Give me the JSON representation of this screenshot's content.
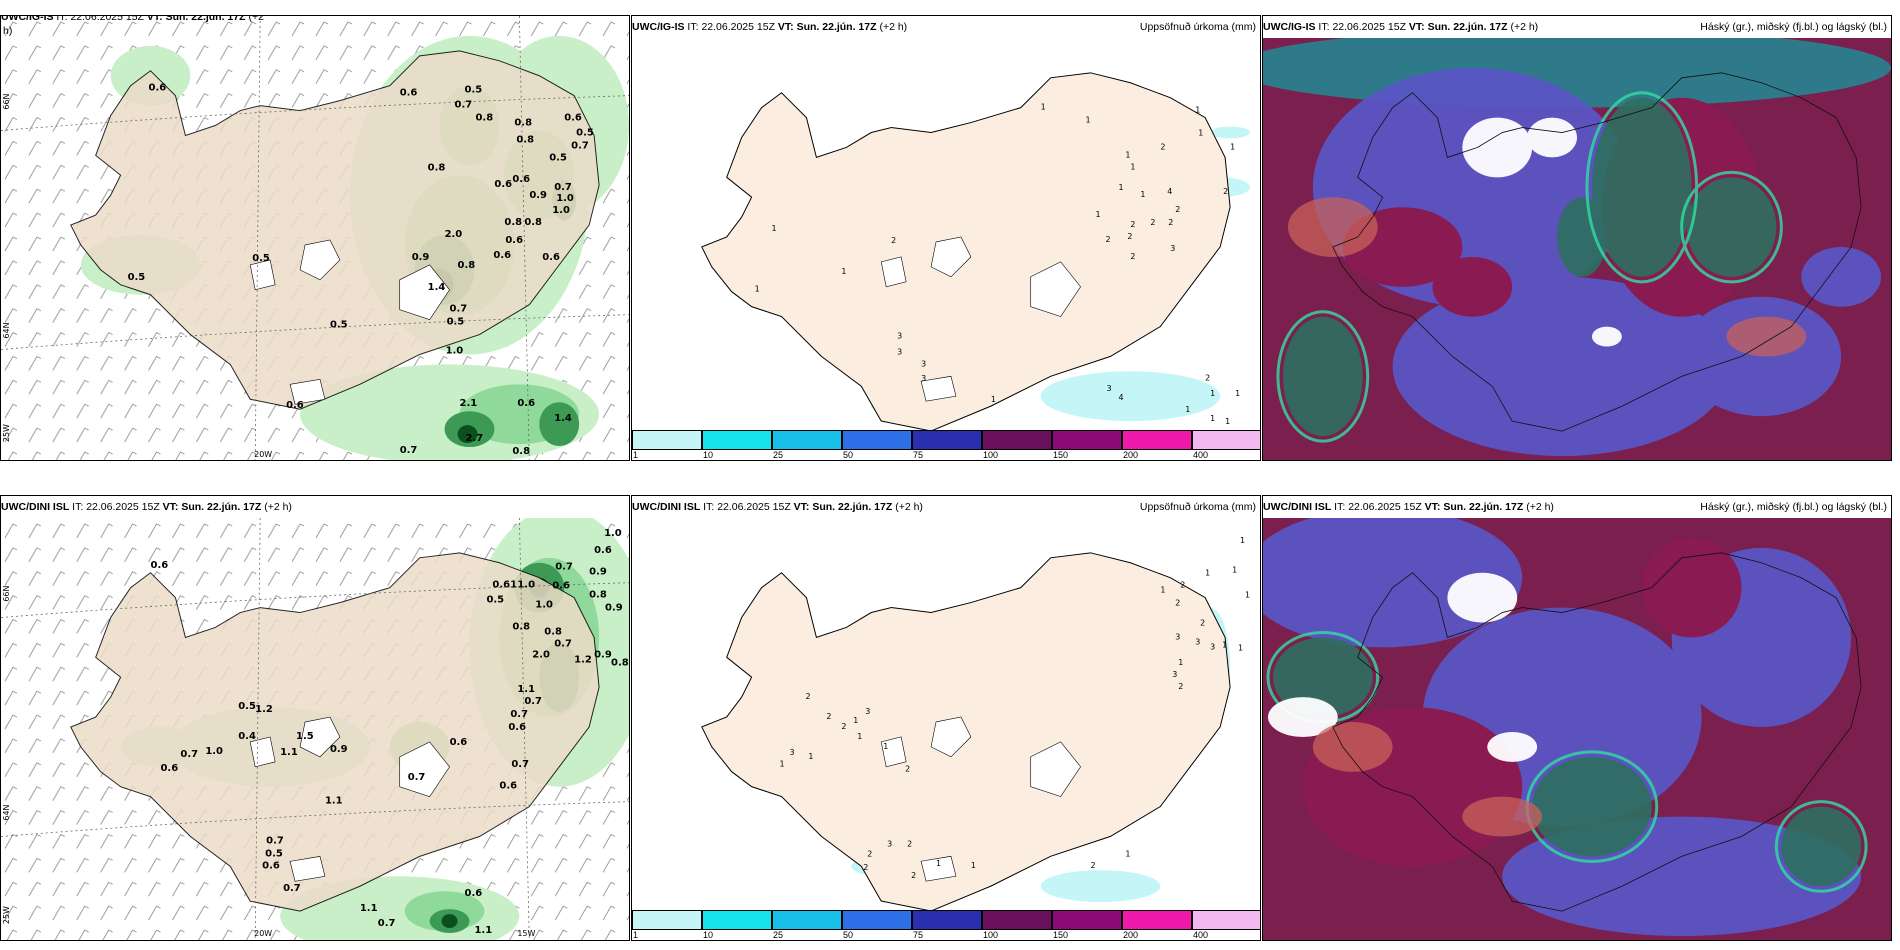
{
  "models": {
    "top": "UWC/IG-IS",
    "bottom": "UWC/DINI ISL"
  },
  "timing": {
    "it_label": "IT:",
    "it_value": "22.06.2025 15Z",
    "vt_label": "VT:",
    "vt_value": "Sun. 22.jún. 17Z",
    "lead": "(+2 h)",
    "lead_wrapped_a": "(+2",
    "lead_wrapped_b": "h)"
  },
  "titles": {
    "precip": "Uppsöfnuð úrkoma (mm)",
    "cloud": "Háský (gr.), miðský (fj.bl.) og lágský (bl.)"
  },
  "axes": {
    "lat66": "66N",
    "lat64": "64N",
    "lon25": "25W",
    "lon20": "20W",
    "lon15": "15W",
    "lat66r": "66N",
    "lat64r": "64N"
  },
  "colorbar": {
    "ticks": [
      "1",
      "10",
      "25",
      "50",
      "75",
      "100",
      "150",
      "200",
      "400"
    ],
    "colors": [
      "#c4f5f7",
      "#17e3eb",
      "#19bfe8",
      "#2f6fe8",
      "#2a2fb0",
      "#6a0f5c",
      "#8c0b77",
      "#f01aaa",
      "#f2b8f0"
    ]
  },
  "panel_top_left": {
    "labels": [
      "0.6",
      "0.6",
      "0.5",
      "0.7",
      "0.8",
      "0.8",
      "0.8",
      "0.6",
      "0.5",
      "0.7",
      "0.8",
      "0.5",
      "0.6",
      "0.6",
      "0.7",
      "1.0",
      "1.0",
      "0.9",
      "2.0",
      "0.8",
      "0.8",
      "1.4",
      "0.7",
      "0.9",
      "0.5",
      "0.6",
      "0.6",
      "0.8",
      "0.6",
      "0.5",
      "0.5",
      "0.5",
      "1.0",
      "2.1",
      "0.6",
      "2.7",
      "0.6",
      "0.8",
      "1.4",
      "0.7"
    ]
  },
  "panel_top_mid": {
    "labels": [
      "1",
      "1",
      "1",
      "1",
      "1",
      "2",
      "1",
      "1",
      "1",
      "4",
      "2",
      "1",
      "2",
      "2",
      "2",
      "2",
      "3",
      "2",
      "1",
      "2",
      "2",
      "1",
      "2",
      "1",
      "1",
      "3",
      "3",
      "3",
      "3",
      "3",
      "4",
      "1",
      "2",
      "1",
      "1",
      "1",
      "1",
      "1"
    ]
  },
  "panel_bot_left": {
    "labels": [
      "1.0",
      "0.6",
      "0.6",
      "0.7",
      "0.9",
      "0.61",
      "1.0",
      "0.5",
      "0.6",
      "0.8",
      "0.9",
      "0.8",
      "0.8",
      "1.0",
      "0.7",
      "2.0",
      "1.2",
      "0.9",
      "0.8",
      "1.1",
      "0.7",
      "0.7",
      "0.6",
      "1.2",
      "0.5",
      "0.4",
      "1.5",
      "0.9",
      "0.7",
      "1.0",
      "1.1",
      "0.6",
      "0.6",
      "0.7",
      "1.1",
      "0.7",
      "0.5",
      "0.6",
      "0.6",
      "0.7",
      "1.1",
      "0.7",
      "0.6",
      "0.7",
      "1.1"
    ]
  },
  "panel_bot_mid": {
    "labels": [
      "1",
      "1",
      "1",
      "2",
      "1",
      "1",
      "2",
      "2",
      "3",
      "3",
      "3",
      "1",
      "1",
      "1",
      "3",
      "2",
      "2",
      "3",
      "2",
      "1",
      "2",
      "3",
      "1",
      "1",
      "1",
      "1",
      "2",
      "2",
      "2",
      "2",
      "3",
      "2",
      "1",
      "1",
      "2",
      "1"
    ]
  }
}
